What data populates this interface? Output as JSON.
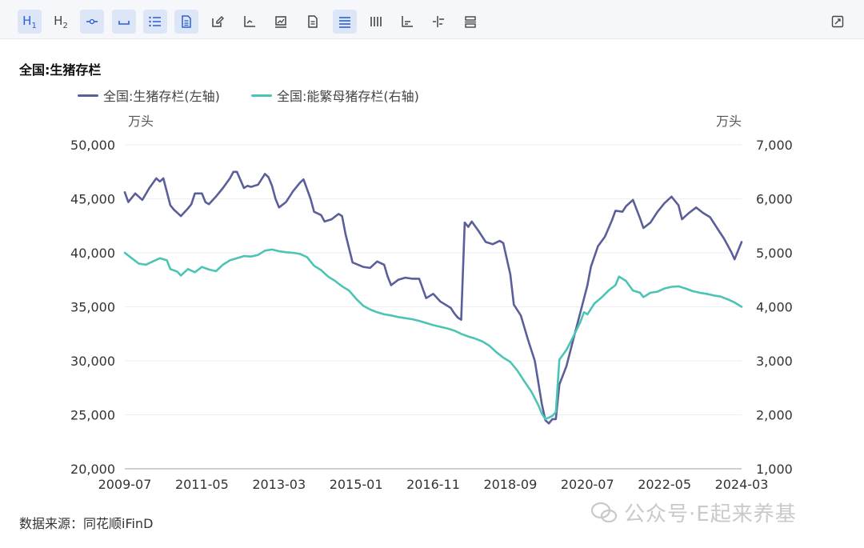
{
  "toolbar": {
    "buttons": [
      {
        "name": "heading1-button",
        "label": "H1",
        "active": true
      },
      {
        "name": "heading2-button",
        "label": "H2",
        "active": false
      },
      {
        "name": "divider-button",
        "label": "",
        "active": true
      },
      {
        "name": "space-button",
        "label": "",
        "active": true
      },
      {
        "name": "ordered-list-button",
        "label": "",
        "active": true
      },
      {
        "name": "document-button",
        "label": "",
        "active": true
      },
      {
        "name": "edit-button",
        "label": "",
        "active": false
      },
      {
        "name": "line-chart-button",
        "label": "",
        "active": false
      },
      {
        "name": "picture-button",
        "label": "",
        "active": false
      },
      {
        "name": "file-button",
        "label": "",
        "active": false
      },
      {
        "name": "align-button",
        "label": "",
        "active": true
      },
      {
        "name": "columns-button",
        "label": "",
        "active": false
      },
      {
        "name": "bar-chart-button",
        "label": "",
        "active": false
      },
      {
        "name": "stat-button",
        "label": "",
        "active": false
      },
      {
        "name": "layout-button",
        "label": "",
        "active": false
      }
    ],
    "expand_icon": "expand-icon"
  },
  "chart_data": {
    "type": "line",
    "title": "全国:生猪存栏",
    "left_unit": "万头",
    "right_unit": "万头",
    "left_ylim": [
      20000,
      50000
    ],
    "right_ylim": [
      1000,
      7000
    ],
    "left_ticks": [
      "50,000",
      "45,000",
      "40,000",
      "35,000",
      "30,000",
      "25,000",
      "20,000"
    ],
    "right_ticks": [
      "7,000",
      "6,000",
      "5,000",
      "4,000",
      "3,000",
      "2,000",
      "1,000"
    ],
    "x_ticks": [
      "2009-07",
      "2011-05",
      "2013-03",
      "2015-01",
      "2016-11",
      "2018-09",
      "2020-07",
      "2022-05",
      "2024-03"
    ],
    "grid": true,
    "legend_placement": "top",
    "series": [
      {
        "name": "全国:生猪存栏(左轴)",
        "axis": "left",
        "color": "#5a5f99",
        "points": [
          [
            "2009-07",
            45600
          ],
          [
            "2009-08",
            44700
          ],
          [
            "2009-10",
            45500
          ],
          [
            "2009-12",
            44900
          ],
          [
            "2010-02",
            46000
          ],
          [
            "2010-04",
            46900
          ],
          [
            "2010-05",
            46600
          ],
          [
            "2010-06",
            46900
          ],
          [
            "2010-08",
            44400
          ],
          [
            "2010-09",
            44000
          ],
          [
            "2010-11",
            43400
          ],
          [
            "2011-01",
            44100
          ],
          [
            "2011-02",
            44500
          ],
          [
            "2011-03",
            45500
          ],
          [
            "2011-05",
            45500
          ],
          [
            "2011-06",
            44700
          ],
          [
            "2011-07",
            44500
          ],
          [
            "2011-09",
            45200
          ],
          [
            "2011-11",
            46000
          ],
          [
            "2012-01",
            46900
          ],
          [
            "2012-02",
            47500
          ],
          [
            "2012-03",
            47500
          ],
          [
            "2012-05",
            46000
          ],
          [
            "2012-06",
            46200
          ],
          [
            "2012-07",
            46100
          ],
          [
            "2012-09",
            46300
          ],
          [
            "2012-11",
            47300
          ],
          [
            "2012-12",
            47000
          ],
          [
            "2013-01",
            46200
          ],
          [
            "2013-02",
            45000
          ],
          [
            "2013-03",
            44200
          ],
          [
            "2013-05",
            44700
          ],
          [
            "2013-07",
            45700
          ],
          [
            "2013-09",
            46500
          ],
          [
            "2013-10",
            46800
          ],
          [
            "2013-12",
            45000
          ],
          [
            "2014-01",
            43800
          ],
          [
            "2014-03",
            43500
          ],
          [
            "2014-04",
            42900
          ],
          [
            "2014-06",
            43100
          ],
          [
            "2014-08",
            43600
          ],
          [
            "2014-09",
            43400
          ],
          [
            "2014-10",
            41700
          ],
          [
            "2014-12",
            39100
          ],
          [
            "2015-03",
            38700
          ],
          [
            "2015-05",
            38600
          ],
          [
            "2015-07",
            39200
          ],
          [
            "2015-09",
            38900
          ],
          [
            "2015-10",
            37800
          ],
          [
            "2015-11",
            37000
          ],
          [
            "2016-01",
            37500
          ],
          [
            "2016-03",
            37700
          ],
          [
            "2016-05",
            37600
          ],
          [
            "2016-07",
            37600
          ],
          [
            "2016-09",
            35800
          ],
          [
            "2016-11",
            36200
          ],
          [
            "2017-01",
            35500
          ],
          [
            "2017-04",
            34900
          ],
          [
            "2017-05",
            34400
          ],
          [
            "2017-06",
            34000
          ],
          [
            "2017-07",
            33800
          ],
          [
            "2017-08",
            42800
          ],
          [
            "2017-09",
            42400
          ],
          [
            "2017-10",
            42900
          ],
          [
            "2017-12",
            42000
          ],
          [
            "2018-02",
            41000
          ],
          [
            "2018-04",
            40800
          ],
          [
            "2018-06",
            41100
          ],
          [
            "2018-07",
            40900
          ],
          [
            "2018-09",
            38000
          ],
          [
            "2018-10",
            35200
          ],
          [
            "2018-12",
            34200
          ],
          [
            "2019-02",
            32000
          ],
          [
            "2019-04",
            30000
          ],
          [
            "2019-06",
            26000
          ],
          [
            "2019-07",
            24500
          ],
          [
            "2019-08",
            24200
          ],
          [
            "2019-09",
            24600
          ],
          [
            "2019-10",
            24600
          ],
          [
            "2019-11",
            27800
          ],
          [
            "2020-01",
            29500
          ],
          [
            "2020-03",
            32000
          ],
          [
            "2020-05",
            34500
          ],
          [
            "2020-07",
            37000
          ],
          [
            "2020-08",
            38700
          ],
          [
            "2020-10",
            40600
          ],
          [
            "2020-12",
            41500
          ],
          [
            "2021-02",
            43000
          ],
          [
            "2021-03",
            43900
          ],
          [
            "2021-05",
            43800
          ],
          [
            "2021-06",
            44300
          ],
          [
            "2021-08",
            44900
          ],
          [
            "2021-10",
            43200
          ],
          [
            "2021-11",
            42300
          ],
          [
            "2022-01",
            42800
          ],
          [
            "2022-03",
            43800
          ],
          [
            "2022-05",
            44600
          ],
          [
            "2022-07",
            45200
          ],
          [
            "2022-09",
            44400
          ],
          [
            "2022-10",
            43100
          ],
          [
            "2022-12",
            43700
          ],
          [
            "2023-02",
            44200
          ],
          [
            "2023-04",
            43700
          ],
          [
            "2023-06",
            43300
          ],
          [
            "2023-08",
            42300
          ],
          [
            "2023-10",
            41300
          ],
          [
            "2023-12",
            40100
          ],
          [
            "2024-01",
            39400
          ],
          [
            "2024-03",
            41000
          ]
        ]
      },
      {
        "name": "全国:能繁母猪存栏(右轴)",
        "axis": "right",
        "color": "#4cc4b4",
        "points": [
          [
            "2009-07",
            5000
          ],
          [
            "2009-09",
            4900
          ],
          [
            "2009-11",
            4800
          ],
          [
            "2010-01",
            4780
          ],
          [
            "2010-03",
            4840
          ],
          [
            "2010-05",
            4900
          ],
          [
            "2010-07",
            4860
          ],
          [
            "2010-08",
            4700
          ],
          [
            "2010-10",
            4650
          ],
          [
            "2010-11",
            4580
          ],
          [
            "2011-01",
            4700
          ],
          [
            "2011-03",
            4640
          ],
          [
            "2011-05",
            4740
          ],
          [
            "2011-07",
            4690
          ],
          [
            "2011-09",
            4660
          ],
          [
            "2011-11",
            4780
          ],
          [
            "2012-01",
            4860
          ],
          [
            "2012-03",
            4900
          ],
          [
            "2012-05",
            4940
          ],
          [
            "2012-07",
            4930
          ],
          [
            "2012-09",
            4960
          ],
          [
            "2012-11",
            5040
          ],
          [
            "2013-01",
            5060
          ],
          [
            "2013-03",
            5030
          ],
          [
            "2013-05",
            5010
          ],
          [
            "2013-07",
            5000
          ],
          [
            "2013-09",
            4980
          ],
          [
            "2013-11",
            4920
          ],
          [
            "2014-01",
            4760
          ],
          [
            "2014-03",
            4680
          ],
          [
            "2014-05",
            4560
          ],
          [
            "2014-07",
            4480
          ],
          [
            "2014-09",
            4380
          ],
          [
            "2014-11",
            4300
          ],
          [
            "2015-01",
            4150
          ],
          [
            "2015-03",
            4020
          ],
          [
            "2015-05",
            3950
          ],
          [
            "2015-07",
            3900
          ],
          [
            "2015-09",
            3860
          ],
          [
            "2015-11",
            3840
          ],
          [
            "2016-01",
            3810
          ],
          [
            "2016-03",
            3790
          ],
          [
            "2016-05",
            3770
          ],
          [
            "2016-07",
            3740
          ],
          [
            "2016-09",
            3700
          ],
          [
            "2016-11",
            3660
          ],
          [
            "2017-01",
            3630
          ],
          [
            "2017-03",
            3600
          ],
          [
            "2017-05",
            3560
          ],
          [
            "2017-07",
            3500
          ],
          [
            "2017-09",
            3450
          ],
          [
            "2017-11",
            3410
          ],
          [
            "2018-01",
            3360
          ],
          [
            "2018-03",
            3280
          ],
          [
            "2018-05",
            3160
          ],
          [
            "2018-07",
            3060
          ],
          [
            "2018-09",
            2980
          ],
          [
            "2018-11",
            2820
          ],
          [
            "2019-01",
            2620
          ],
          [
            "2019-03",
            2430
          ],
          [
            "2019-05",
            2180
          ],
          [
            "2019-06",
            2020
          ],
          [
            "2019-07",
            1920
          ],
          [
            "2019-08",
            1950
          ],
          [
            "2019-09",
            1980
          ],
          [
            "2019-10",
            2050
          ],
          [
            "2019-11",
            3020
          ],
          [
            "2020-01",
            3200
          ],
          [
            "2020-03",
            3450
          ],
          [
            "2020-05",
            3720
          ],
          [
            "2020-06",
            3900
          ],
          [
            "2020-07",
            3860
          ],
          [
            "2020-09",
            4060
          ],
          [
            "2020-11",
            4170
          ],
          [
            "2021-01",
            4300
          ],
          [
            "2021-03",
            4400
          ],
          [
            "2021-04",
            4560
          ],
          [
            "2021-06",
            4480
          ],
          [
            "2021-08",
            4300
          ],
          [
            "2021-10",
            4260
          ],
          [
            "2021-11",
            4180
          ],
          [
            "2022-01",
            4260
          ],
          [
            "2022-03",
            4280
          ],
          [
            "2022-05",
            4340
          ],
          [
            "2022-07",
            4370
          ],
          [
            "2022-09",
            4380
          ],
          [
            "2022-11",
            4340
          ],
          [
            "2023-01",
            4290
          ],
          [
            "2023-03",
            4260
          ],
          [
            "2023-05",
            4240
          ],
          [
            "2023-07",
            4210
          ],
          [
            "2023-09",
            4190
          ],
          [
            "2023-11",
            4140
          ],
          [
            "2024-01",
            4080
          ],
          [
            "2024-03",
            4000
          ]
        ]
      }
    ]
  },
  "footer": {
    "source": "数据来源：同花顺iFinD",
    "watermark": "公众号·E起来养基"
  }
}
